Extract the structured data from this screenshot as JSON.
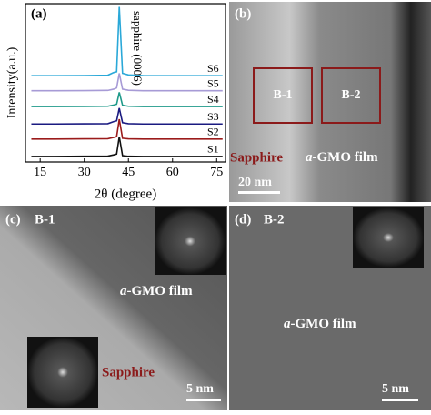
{
  "chart_data": {
    "type": "line",
    "panel_label": "(a)",
    "annotation": "sapphire (0006)",
    "x_label": "2θ (degree)",
    "y_label": "Intensity(a.u.)",
    "xlim": [
      10,
      78
    ],
    "xticks": [
      15,
      30,
      45,
      60,
      75
    ],
    "ylim": [
      0,
      100
    ],
    "x": [
      12,
      20,
      30,
      38,
      40,
      41,
      41.9,
      43,
      45,
      50,
      60,
      70,
      77
    ],
    "series": [
      {
        "name": "S1",
        "color": "#111111",
        "values": [
          3.5,
          3.5,
          3.6,
          3.7,
          4.5,
          5,
          16,
          4,
          3.6,
          3.5,
          3.5,
          3.5,
          3.5
        ]
      },
      {
        "name": "S2",
        "color": "#9b1b1b",
        "values": [
          14.5,
          14.5,
          14.6,
          14.7,
          15.5,
          16,
          27,
          15,
          14.6,
          14.5,
          14.5,
          14.5,
          14.5
        ]
      },
      {
        "name": "S3",
        "color": "#1a1a80",
        "values": [
          24,
          24,
          24.1,
          24.2,
          25.5,
          26,
          34,
          24.8,
          24.2,
          24,
          24,
          24,
          24
        ]
      },
      {
        "name": "S4",
        "color": "#1f9a8a",
        "values": [
          35,
          35,
          35.1,
          35.2,
          36,
          36.5,
          44,
          35.8,
          35.2,
          35,
          35,
          35,
          35
        ]
      },
      {
        "name": "S5",
        "color": "#a79bd6",
        "values": [
          45,
          45,
          45.1,
          45.2,
          46,
          46.8,
          56,
          46,
          45.3,
          45,
          45,
          45,
          45
        ]
      },
      {
        "name": "S6",
        "color": "#2aa8d8",
        "values": [
          54.5,
          54.5,
          54.6,
          54.8,
          56.5,
          57,
          98,
          56,
          55,
          54.6,
          54.5,
          54.5,
          54.5
        ]
      }
    ]
  },
  "panels": {
    "b": {
      "label": "(b)",
      "box1": "B-1",
      "box2": "B-2",
      "left": "Sapphire",
      "right_prefix": "a",
      "right": "-GMO film",
      "scale": "20 nm"
    },
    "c": {
      "label": "(c)",
      "name": "B-1",
      "film_prefix": "a",
      "film": "-GMO film",
      "sapphire": "Sapphire",
      "scale": "5 nm"
    },
    "d": {
      "label": "(d)",
      "name": "B-2",
      "film_prefix": "a",
      "film": "-GMO film",
      "scale": "5 nm"
    }
  }
}
